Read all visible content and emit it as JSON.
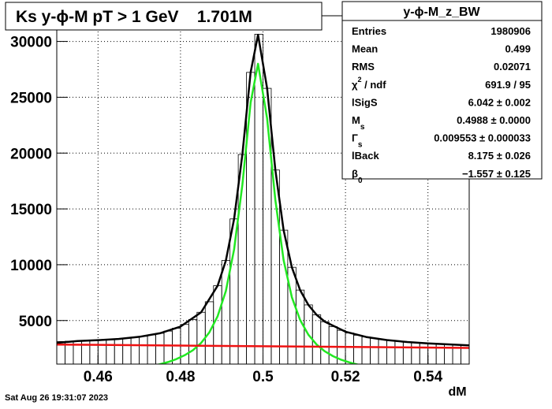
{
  "chart_data": {
    "type": "histogram",
    "title": "Ks y-ϕ-M pT > 1 GeV    1.701M",
    "x_label": "dM",
    "bins": [
      0.45,
      0.452,
      0.454,
      0.456,
      0.458,
      0.46,
      0.462,
      0.464,
      0.466,
      0.468,
      0.47,
      0.472,
      0.474,
      0.476,
      0.478,
      0.48,
      0.482,
      0.484,
      0.486,
      0.488,
      0.49,
      0.492,
      0.494,
      0.496,
      0.498,
      0.5,
      0.502,
      0.504,
      0.506,
      0.508,
      0.51,
      0.512,
      0.514,
      0.516,
      0.518,
      0.52,
      0.522,
      0.524,
      0.526,
      0.528,
      0.53,
      0.532,
      0.534,
      0.536,
      0.538,
      0.54,
      0.542,
      0.544,
      0.546,
      0.548,
      0.55
    ],
    "counts": [
      3124,
      3143,
      3165,
      3191,
      3221,
      3257,
      3301,
      3354,
      3417,
      3496,
      3589,
      3708,
      3860,
      4053,
      4310,
      4649,
      5092,
      5740,
      6683,
      8118,
      10377,
      14103,
      19872,
      27227,
      30647,
      25799,
      18483,
      13094,
      9768,
      7727,
      6400,
      5512,
      4895,
      4455,
      4124,
      3881,
      3684,
      3528,
      3401,
      3298,
      3210,
      3138,
      3075,
      3021,
      2974,
      2931,
      2894,
      2861,
      2832,
      2805
    ],
    "color": "#000000",
    "curves": [
      {
        "color": "#000000",
        "width": 2.5,
        "x": [
          0.45,
          0.455,
          0.46,
          0.465,
          0.47,
          0.475,
          0.48,
          0.485,
          0.489,
          0.491,
          0.493,
          0.495,
          0.497,
          0.4988,
          0.501,
          0.503,
          0.505,
          0.507,
          0.509,
          0.511,
          0.513,
          0.515,
          0.52,
          0.525,
          0.53,
          0.535,
          0.54,
          0.545,
          0.55
        ],
        "values": [
          3000,
          3165,
          3240,
          3354,
          3540,
          3860,
          4460,
          5740,
          8118,
          10377,
          14103,
          19872,
          27227,
          30600,
          25799,
          18483,
          13094,
          9768,
          7727,
          6400,
          5512,
          4895,
          4000,
          3528,
          3250,
          3075,
          2950,
          2861,
          2780
        ]
      },
      {
        "color": "#22e822",
        "width": 2.5,
        "x": [
          0.473,
          0.475,
          0.477,
          0.479,
          0.481,
          0.483,
          0.485,
          0.487,
          0.489,
          0.491,
          0.493,
          0.495,
          0.497,
          0.4988,
          0.501,
          0.503,
          0.505,
          0.507,
          0.509,
          0.511,
          0.513,
          0.515,
          0.517,
          0.519,
          0.521,
          0.523,
          0.525
        ],
        "values": [
          927,
          1085,
          1284,
          1547,
          1892,
          2341,
          2995,
          3944,
          5385,
          7650,
          11382,
          17157,
          24518,
          28000,
          23102,
          15792,
          10409,
          7089,
          5054,
          3733,
          2851,
          2240,
          1806,
          1481,
          1244,
          1053,
          903
        ]
      },
      {
        "color": "#ee1111",
        "width": 2.5,
        "x": [
          0.45,
          0.55
        ],
        "values": [
          2850,
          2550
        ]
      }
    ],
    "xlim": [
      0.45,
      0.55
    ],
    "ylim": [
      1100,
      32300
    ],
    "xticks": [
      0.46,
      0.48,
      0.5,
      0.52,
      0.54
    ],
    "yticks": [
      5000,
      10000,
      15000,
      20000,
      25000,
      30000
    ],
    "grid": true
  },
  "stats": {
    "title": "y-ϕ-M_z_BW",
    "rows": [
      {
        "label": "Entries",
        "value": "1980906"
      },
      {
        "label": "Mean",
        "value": "0.499"
      },
      {
        "label": "RMS",
        "value": "0.02071"
      },
      {
        "label": "χ",
        "sup": "2",
        "suffix": " / ndf",
        "value": "691.9 / 95"
      },
      {
        "label": "lSigS",
        "value": "6.042 ± 0.002"
      },
      {
        "label": "M",
        "sub": "s",
        "value": "0.4988 ± 0.0000"
      },
      {
        "label": "Γ",
        "sub": "s",
        "value": "0.009553 ± 0.000033"
      },
      {
        "label": "lBack",
        "value": "8.175 ± 0.026"
      },
      {
        "label": "β",
        "sub": "0",
        "value": "−1.557 ± 0.125"
      }
    ]
  },
  "footer": "Sat Aug 26 19:31:07 2023"
}
